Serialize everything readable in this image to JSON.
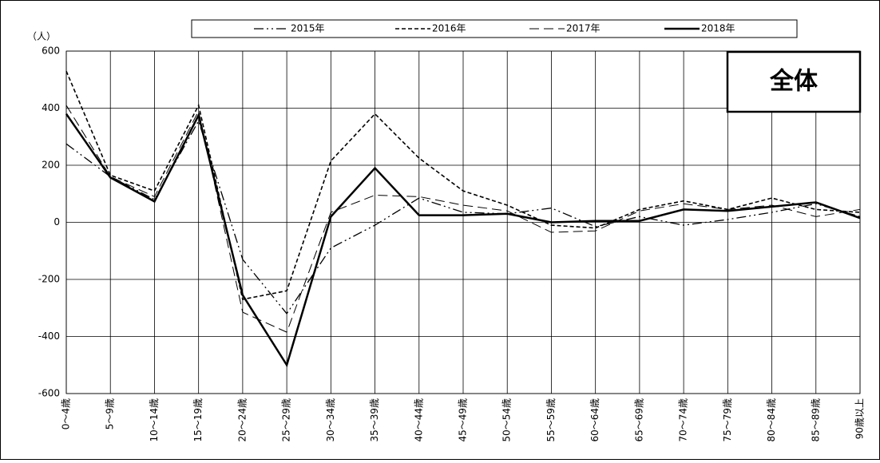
{
  "chart_data": {
    "type": "line",
    "title": "全体",
    "y_unit": "（人）",
    "categories": [
      "0～4歳",
      "5～9歳",
      "10～14歳",
      "15～19歳",
      "20～24歳",
      "25～29歳",
      "30～34歳",
      "35～39歳",
      "40～44歳",
      "45～49歳",
      "50～54歳",
      "55～59歳",
      "60～64歳",
      "65～69歳",
      "70～74歳",
      "75～79歳",
      "80～84歳",
      "85～89歳",
      "90歳以上"
    ],
    "series": [
      {
        "name": "2015年",
        "color": "#000000",
        "dash": "12 4 2 4 2 4",
        "width": 1.3,
        "values": [
          275,
          160,
          80,
          355,
          -130,
          -320,
          -90,
          -10,
          85,
          35,
          30,
          50,
          -15,
          20,
          -10,
          10,
          35,
          65,
          20
        ]
      },
      {
        "name": "2016年",
        "color": "#000000",
        "dash": "5 3",
        "width": 1.6,
        "values": [
          530,
          165,
          110,
          410,
          -270,
          -240,
          215,
          380,
          225,
          110,
          60,
          -10,
          -20,
          45,
          75,
          45,
          85,
          45,
          35
        ]
      },
      {
        "name": "2017年",
        "color": "#000000",
        "dash": "12 6",
        "width": 1,
        "values": [
          410,
          160,
          90,
          390,
          -315,
          -385,
          35,
          95,
          90,
          60,
          40,
          -35,
          -30,
          40,
          65,
          45,
          60,
          20,
          45
        ]
      },
      {
        "name": "2018年",
        "color": "#000000",
        "dash": "none",
        "width": 2.5,
        "values": [
          380,
          157,
          73,
          375,
          -255,
          -500,
          20,
          190,
          25,
          25,
          30,
          0,
          5,
          5,
          45,
          40,
          55,
          70,
          15
        ]
      }
    ],
    "ylim": [
      -600,
      600
    ],
    "yticks": [
      -600,
      -400,
      -200,
      0,
      200,
      400,
      600
    ],
    "grid": true
  }
}
